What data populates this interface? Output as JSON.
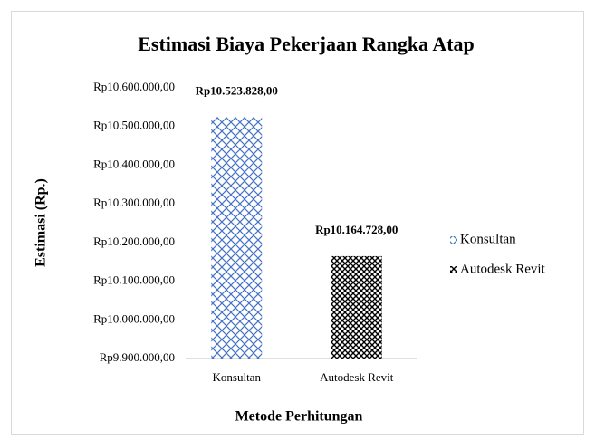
{
  "chart_data": {
    "type": "bar",
    "title": "Estimasi Biaya Pekerjaan Rangka Atap",
    "x_label": "Metode Perhitungan",
    "y_label": "Estimasi (Rp.)",
    "categories": [
      "Konsultan",
      "Autodesk Revit"
    ],
    "series": [
      {
        "name": "Konsultan",
        "color": "#4472c4",
        "values": [
          10523828,
          null
        ],
        "value_labels": [
          "Rp10.523.828,00",
          null
        ]
      },
      {
        "name": "Autodesk Revit",
        "color": "#000000",
        "values": [
          null,
          10164728
        ],
        "value_labels": [
          null,
          "Rp10.164.728,00"
        ]
      }
    ],
    "ylim": [
      9900000,
      10600000
    ],
    "yticks": [
      {
        "value": 9900000,
        "label": "Rp9.900.000,00"
      },
      {
        "value": 10000000,
        "label": "Rp10.000.000,00"
      },
      {
        "value": 10100000,
        "label": "Rp10.100.000,00"
      },
      {
        "value": 10200000,
        "label": "Rp10.200.000,00"
      },
      {
        "value": 10300000,
        "label": "Rp10.300.000,00"
      },
      {
        "value": 10400000,
        "label": "Rp10.400.000,00"
      },
      {
        "value": 10500000,
        "label": "Rp10.500.000,00"
      },
      {
        "value": 10600000,
        "label": "Rp10.600.000,00"
      }
    ],
    "grid": false,
    "legend": "right"
  }
}
